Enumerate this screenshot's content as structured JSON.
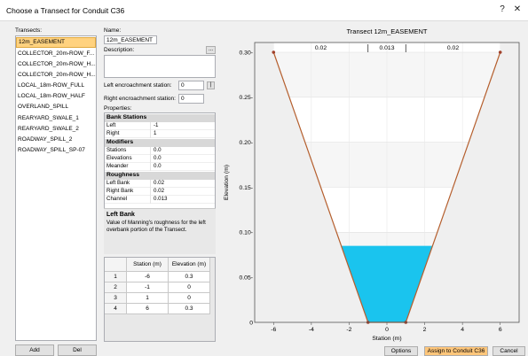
{
  "window": {
    "title": "Choose a Transect for Conduit C36",
    "help_glyph": "?",
    "close_glyph": "✕"
  },
  "transects": {
    "label": "Transects:",
    "items": [
      "12m_EASEMENT",
      "COLLECTOR_20m-ROW_F...",
      "COLLECTOR_20m-ROW_H...",
      "COLLECTOR_20m-ROW_H...",
      "LOCAL_18m-ROW_FULL",
      "LOCAL_18m-ROW_HALF",
      "OVERLAND_SPILL",
      "REARYARD_SWALE_1",
      "REARYARD_SWALE_2",
      "ROADWAY_SPILL_2",
      "ROADWAY_SPILL_SP-07"
    ],
    "selected_index": 0,
    "add_label": "Add",
    "del_label": "Del"
  },
  "details": {
    "name_label": "Name:",
    "name_value": "12m_EASEMENT",
    "description_label": "Description:",
    "description_value": "",
    "desc_button": "...",
    "left_enc_label": "Left encroachment station:",
    "left_enc_value": "0",
    "left_enc_button": "|",
    "right_enc_label": "Right encroachment station:",
    "right_enc_value": "0",
    "properties_label": "Properties:"
  },
  "properties": {
    "bank_stations": {
      "title": "Bank Stations",
      "rows": [
        {
          "key": "Left",
          "value": "-1"
        },
        {
          "key": "Right",
          "value": "1"
        }
      ]
    },
    "modifiers": {
      "title": "Modifiers",
      "rows": [
        {
          "key": "Stations",
          "value": "0.0"
        },
        {
          "key": "Elevations",
          "value": "0.0"
        },
        {
          "key": "Meander",
          "value": "0.0"
        }
      ]
    },
    "roughness": {
      "title": "Roughness",
      "rows": [
        {
          "key": "Left Bank",
          "value": "0.02"
        },
        {
          "key": "Right Bank",
          "value": "0.02"
        },
        {
          "key": "Channel",
          "value": "0.013"
        }
      ]
    },
    "help_title": "Left Bank",
    "help_text": "Value of Manning's roughness for the left overbank portion of the Transect."
  },
  "table": {
    "headers": [
      "",
      "Station (m)",
      "Elevation (m)"
    ],
    "rows": [
      [
        "1",
        "-6",
        "0.3"
      ],
      [
        "2",
        "-1",
        "0"
      ],
      [
        "3",
        "1",
        "0"
      ],
      [
        "4",
        "6",
        "0.3"
      ]
    ]
  },
  "buttons": {
    "options": "Options",
    "assign": "Assign to Conduit C36",
    "cancel": "Cancel"
  },
  "colors": {
    "accent": "#ffd27f",
    "assign_button": "#ffc67a",
    "water": "#1ac4ee",
    "outline": "#b55f2e",
    "point": "#a0402a"
  },
  "chart_data": {
    "type": "line",
    "title": "Transect 12m_EASEMENT",
    "xlabel": "Station (m)",
    "ylabel": "Elevation (m)",
    "xlim": [
      -7,
      7
    ],
    "ylim": [
      0,
      0.3
    ],
    "xticks": [
      -6,
      -4,
      -2,
      0,
      2,
      4,
      6
    ],
    "yticks": [
      0,
      0.05,
      0.1,
      0.15,
      0.2,
      0.25,
      0.3
    ],
    "xtick_labels": [
      "-6",
      "-4",
      "-2",
      "0",
      "2",
      "4",
      "6"
    ],
    "ytick_labels": [
      "0",
      "0.05-",
      "0.10-",
      "0.15-",
      "0.20-",
      "0.25-",
      "0.30-"
    ],
    "grid": true,
    "series": [
      {
        "x": [
          -6,
          -1,
          1,
          6
        ],
        "y": [
          0.3,
          0,
          0,
          0.3
        ]
      }
    ],
    "water_level": 0.085,
    "roughness_labels": [
      "0.02",
      "0.013",
      "0.02"
    ]
  }
}
